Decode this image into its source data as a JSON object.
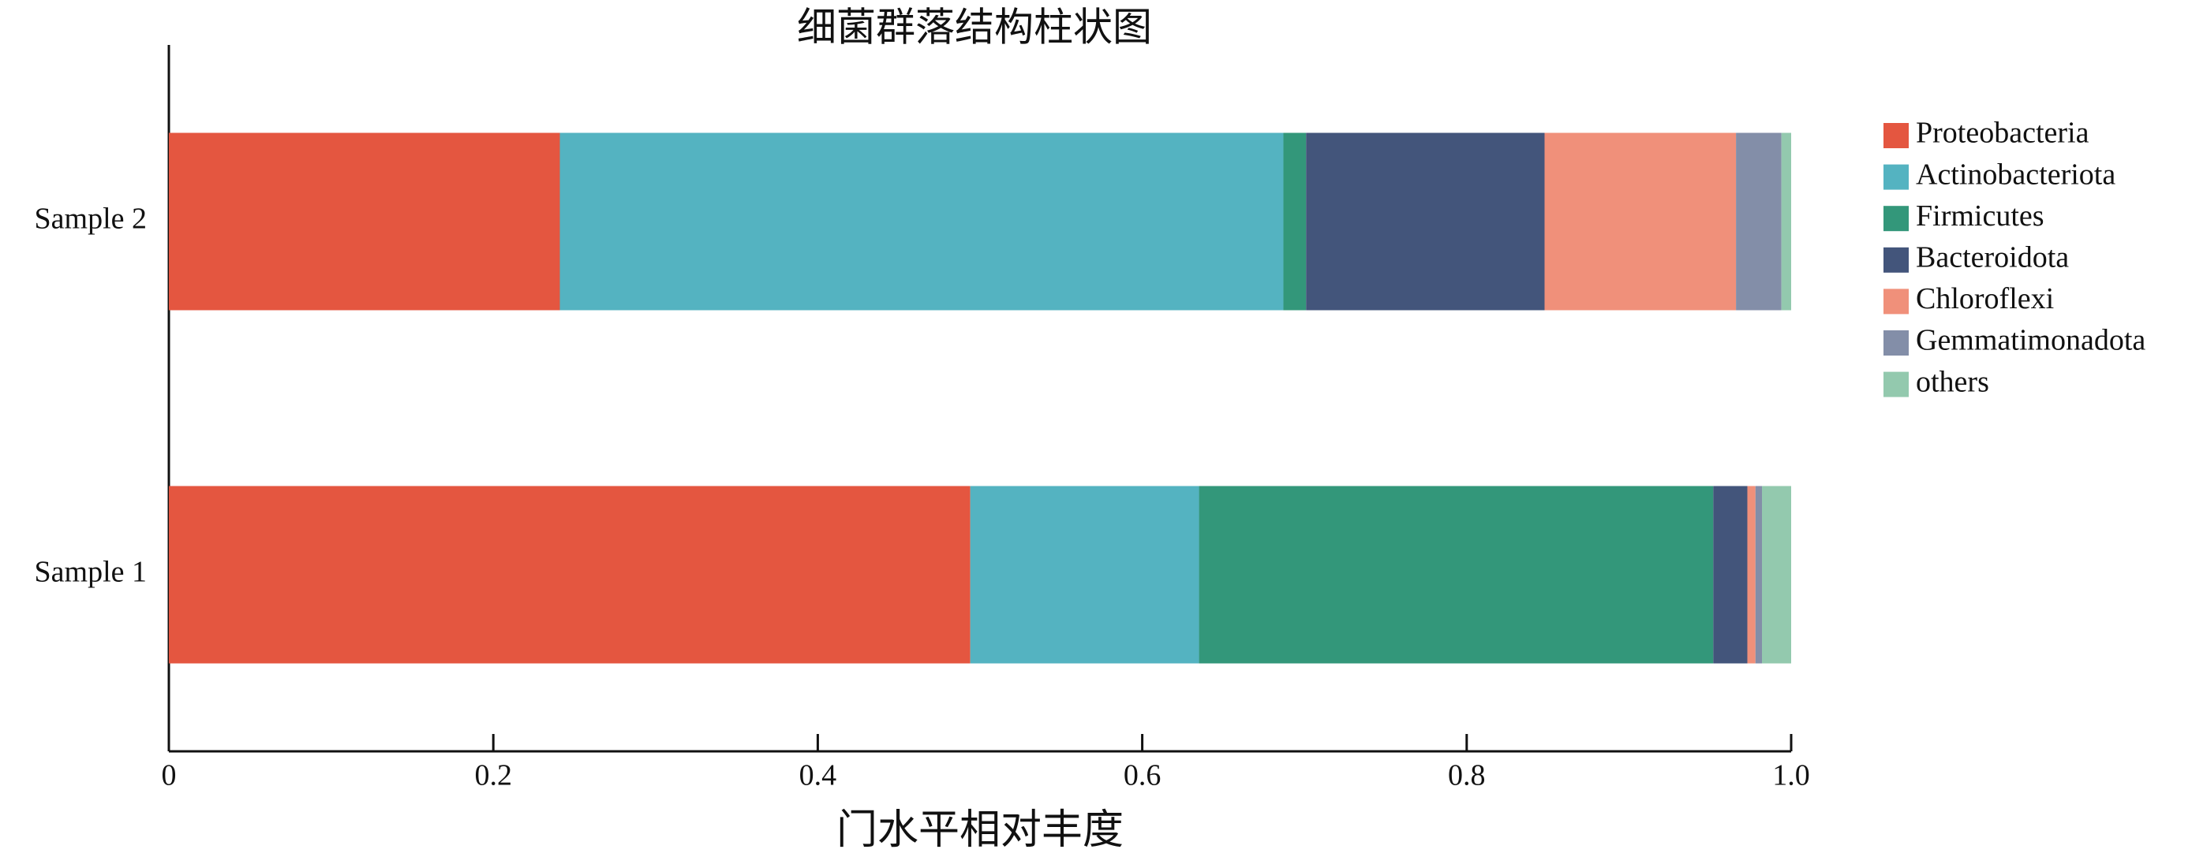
{
  "chart_data": {
    "type": "stacked-barh",
    "title": "细菌群落结构柱状图",
    "x_label": "门水平相对丰度",
    "categories": [
      "Sample 1",
      "Sample 2"
    ],
    "series": [
      {
        "name": "Proteobacteria",
        "color": "#e45640",
        "values": [
          0.494,
          0.241
        ]
      },
      {
        "name": "Actinobacteriota",
        "color": "#54b3c1",
        "values": [
          0.141,
          0.446
        ]
      },
      {
        "name": "Firmicutes",
        "color": "#33977a",
        "values": [
          0.317,
          0.014
        ]
      },
      {
        "name": "Bacteroidota",
        "color": "#43557b",
        "values": [
          0.021,
          0.147
        ]
      },
      {
        "name": "Chloroflexi",
        "color": "#f0907a",
        "values": [
          0.005,
          0.118
        ]
      },
      {
        "name": "Gemmatimonadota",
        "color": "#838ea8",
        "values": [
          0.004,
          0.028
        ]
      },
      {
        "name": "others",
        "color": "#93c9ae",
        "values": [
          0.018,
          0.006
        ]
      }
    ],
    "xlim": [
      0,
      1
    ],
    "xticks": [
      0,
      0.2,
      0.4,
      0.6,
      0.8,
      {
        "value": 1,
        "label": "1.0"
      }
    ],
    "grid": false,
    "legend": "right"
  }
}
